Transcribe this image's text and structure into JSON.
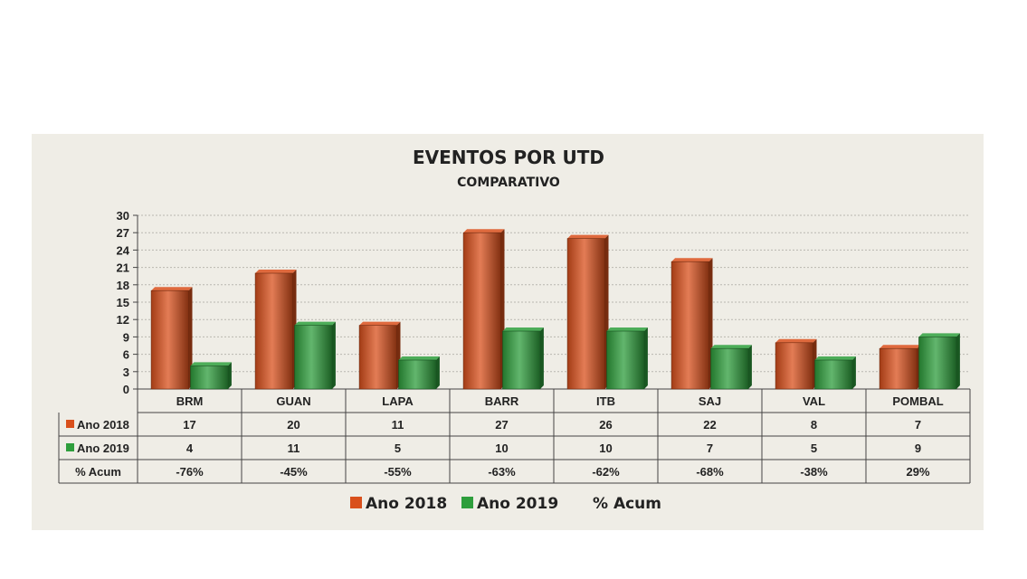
{
  "chart_data": {
    "type": "bar",
    "title": "EVENTOS POR UTD",
    "subtitle": "COMPARATIVO",
    "categories": [
      "BRM",
      "GUAN",
      "LAPA",
      "BARR",
      "ITB",
      "SAJ",
      "VAL",
      "POMBAL"
    ],
    "series": [
      {
        "name": "Ano 2018",
        "values": [
          17,
          20,
          11,
          27,
          26,
          22,
          8,
          7
        ],
        "color": "#d9501c"
      },
      {
        "name": "Ano 2019",
        "values": [
          4,
          11,
          5,
          10,
          10,
          7,
          5,
          9
        ],
        "color": "#2e9e3c"
      }
    ],
    "extra_row": {
      "name": "% Acum",
      "values": [
        "-76%",
        "-45%",
        "-55%",
        "-63%",
        "-62%",
        "-68%",
        "-38%",
        "29%"
      ]
    },
    "ylim": [
      0,
      30
    ],
    "yticks": [
      0,
      3,
      6,
      9,
      12,
      15,
      18,
      21,
      24,
      27,
      30
    ],
    "grid": true,
    "legend_placement": "bottom",
    "data_table": true,
    "legend": [
      "Ano 2018",
      "Ano 2019",
      "% Acum"
    ]
  }
}
